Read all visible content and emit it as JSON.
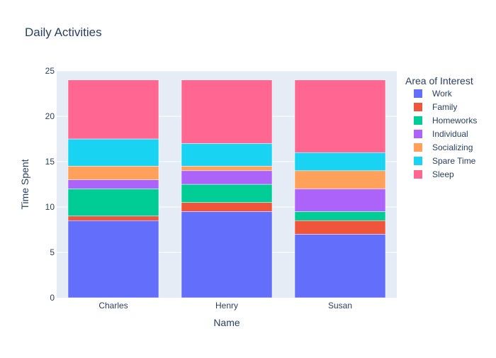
{
  "chart_data": {
    "type": "bar",
    "stacked": true,
    "title": "Daily Activities",
    "xlabel": "Name",
    "ylabel": "Time Spent",
    "categories": [
      "Charles",
      "Henry",
      "Susan"
    ],
    "ylim": [
      0,
      25
    ],
    "yticks": [
      0,
      5,
      10,
      15,
      20,
      25
    ],
    "grid": true,
    "legend_title": "Area of Interest",
    "legend_position": "right",
    "series": [
      {
        "name": "Work",
        "color": "#636efa",
        "values": [
          8.5,
          9.5,
          7.0
        ]
      },
      {
        "name": "Family",
        "color": "#ef553b",
        "values": [
          0.5,
          1.0,
          1.5
        ]
      },
      {
        "name": "Homeworks",
        "color": "#00cc96",
        "values": [
          3.0,
          2.0,
          1.0
        ]
      },
      {
        "name": "Individual",
        "color": "#ab63fa",
        "values": [
          1.0,
          1.5,
          2.5
        ]
      },
      {
        "name": "Socializing",
        "color": "#ffa15a",
        "values": [
          1.5,
          0.5,
          2.0
        ]
      },
      {
        "name": "Spare Time",
        "color": "#19d3f3",
        "values": [
          3.0,
          2.5,
          2.0
        ]
      },
      {
        "name": "Sleep",
        "color": "#ff6692",
        "values": [
          6.5,
          7.0,
          8.0
        ]
      }
    ]
  }
}
